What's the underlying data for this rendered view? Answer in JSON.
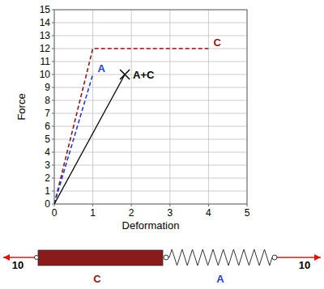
{
  "chart_data": {
    "type": "line",
    "xlabel": "Deformation",
    "ylabel": "Force",
    "xlim": [
      0,
      5
    ],
    "ylim": [
      0,
      15
    ],
    "xticks": [
      0,
      1,
      2,
      3,
      4,
      5
    ],
    "yticks": [
      0,
      1,
      2,
      3,
      4,
      5,
      6,
      7,
      8,
      9,
      10,
      11,
      12,
      13,
      14,
      15
    ],
    "grid": true,
    "series": [
      {
        "name": "C",
        "color": "#8b1a1a",
        "line_style": "dashed",
        "x": [
          0,
          1,
          4
        ],
        "values": [
          0,
          12,
          12
        ]
      },
      {
        "name": "A",
        "color": "#1f3fd6",
        "line_style": "dashed",
        "x": [
          0,
          1
        ],
        "values": [
          0,
          10
        ]
      },
      {
        "name": "A+C",
        "color": "#000000",
        "line_style": "solid",
        "marker": "x",
        "x": [
          0,
          1.83
        ],
        "values": [
          0,
          10
        ]
      }
    ]
  },
  "diagram": {
    "left_force": 10,
    "right_force": 10,
    "members": [
      {
        "label": "C",
        "color": "#8b1a1a"
      },
      {
        "label": "A",
        "color": "#1f3fd6"
      }
    ]
  }
}
